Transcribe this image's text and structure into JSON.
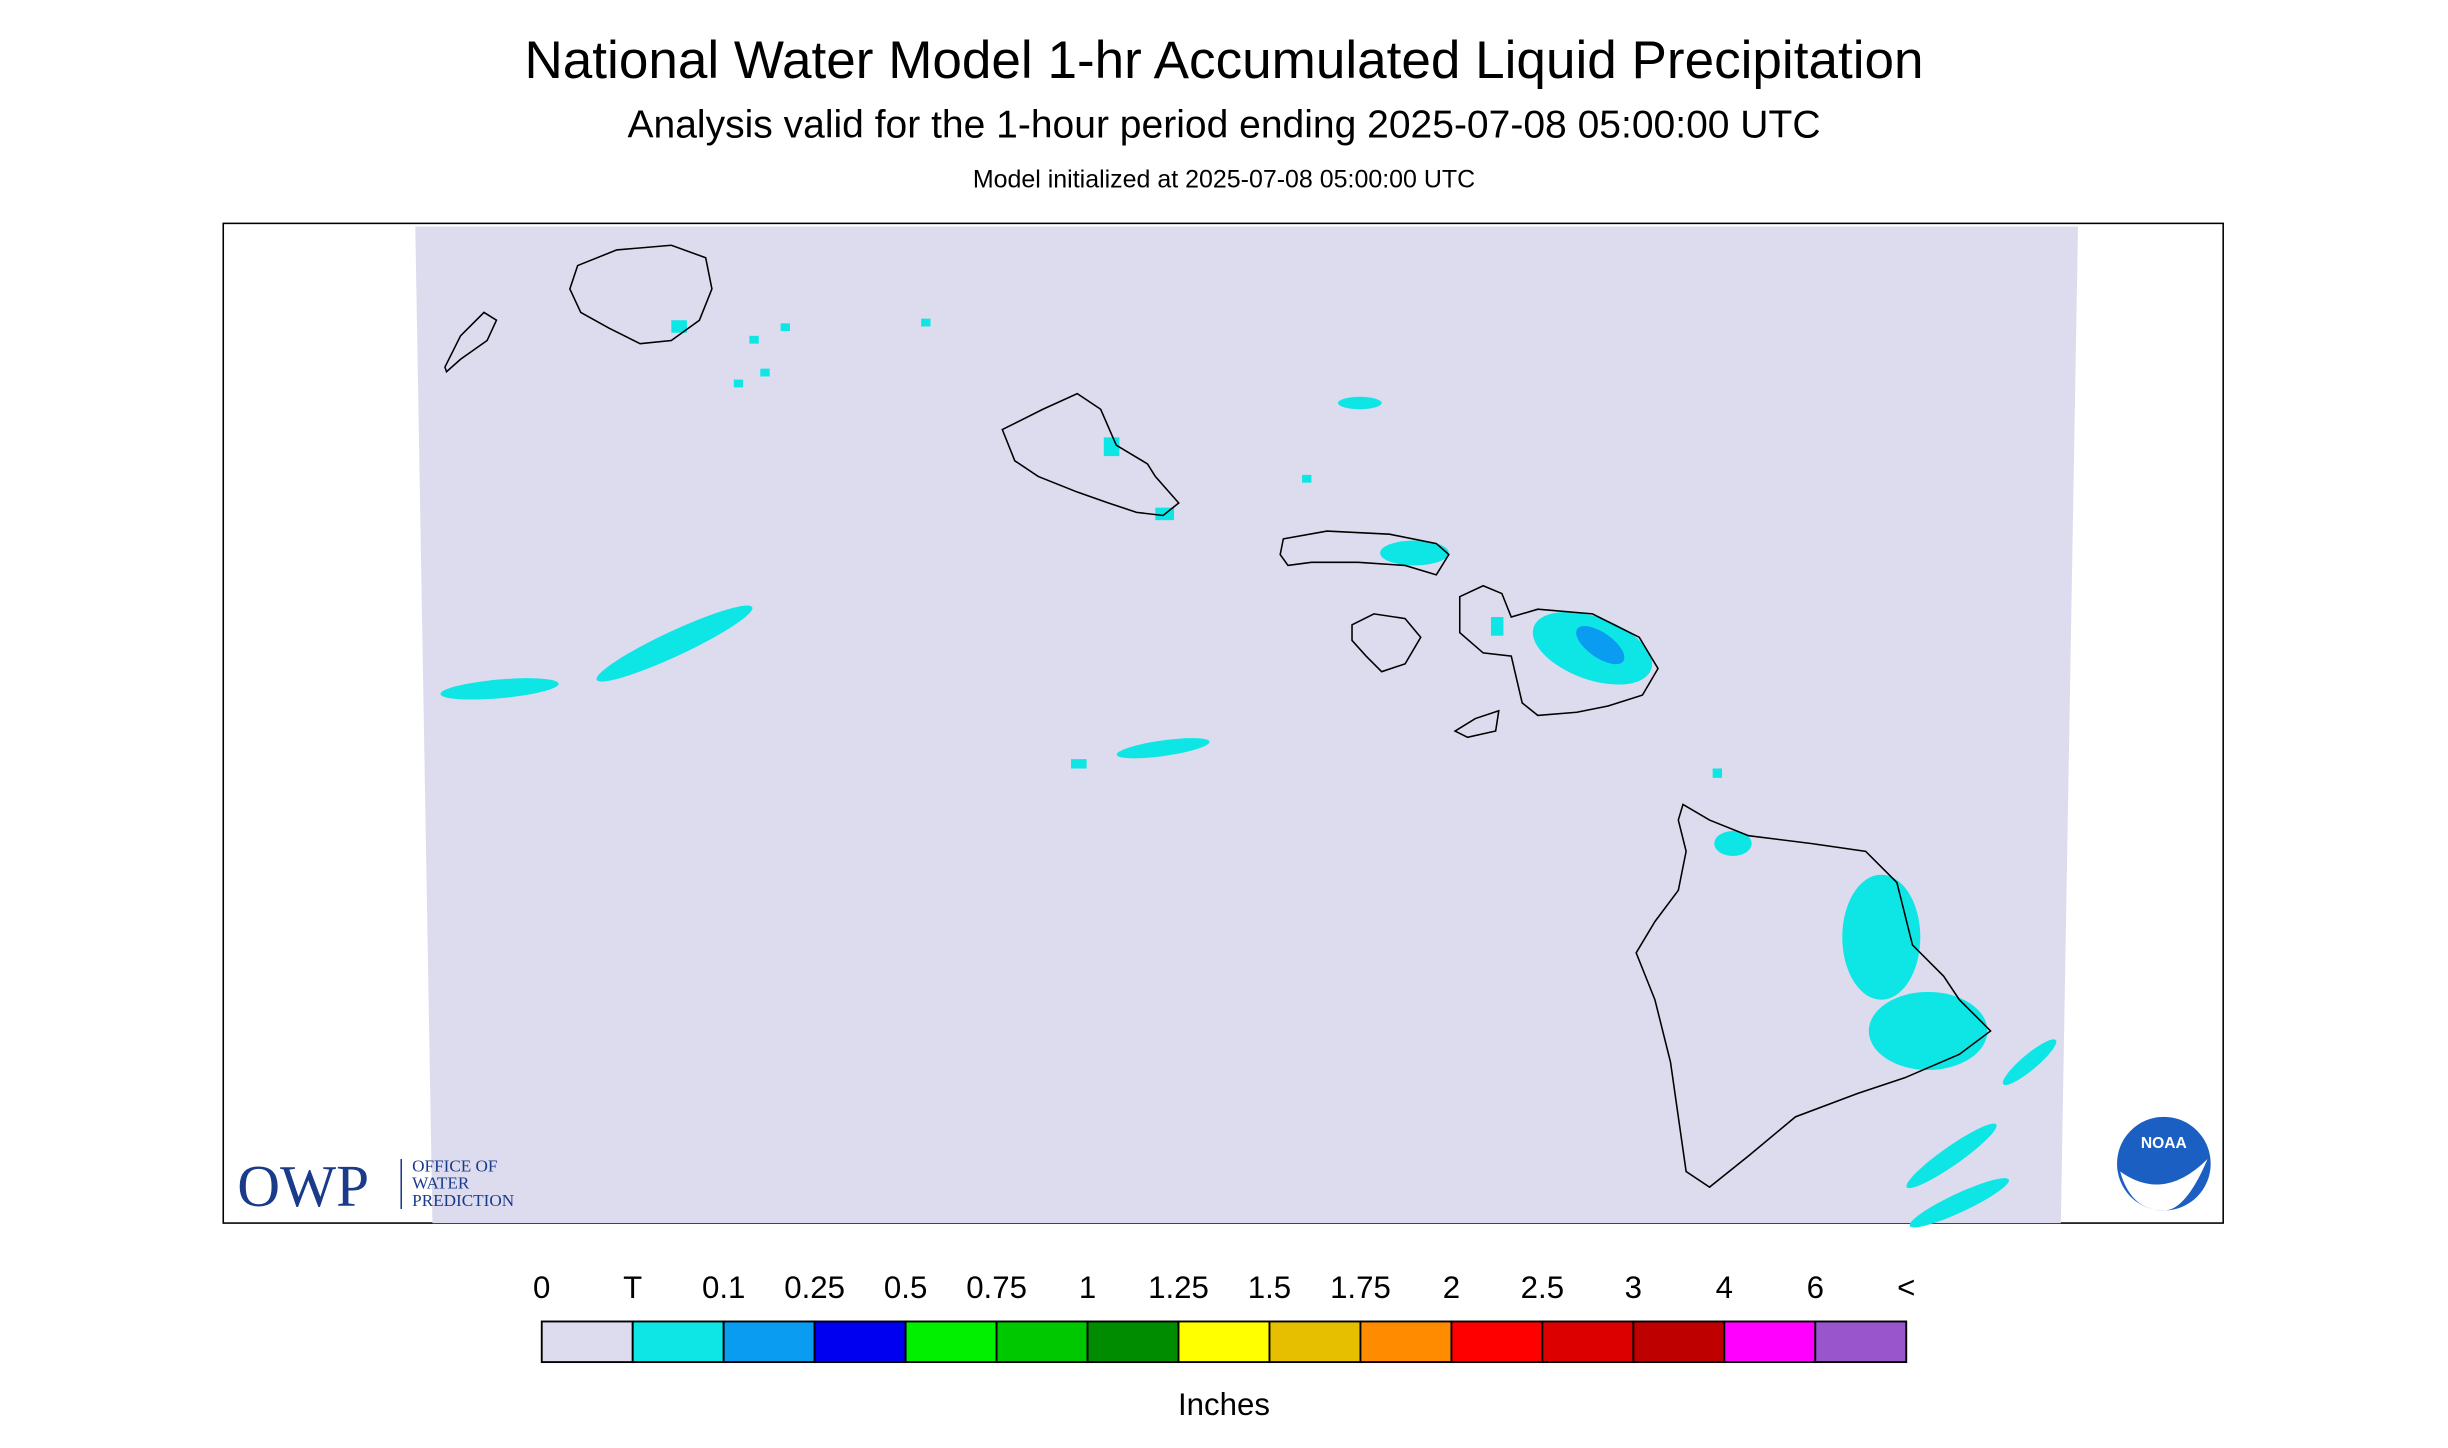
{
  "header": {
    "title": "National Water Model 1-hr Accumulated Liquid Precipitation",
    "subtitle": "Analysis valid for the 1-hour period ending 2025-07-08 05:00:00 UTC",
    "init": "Model initialized at 2025-07-08 05:00:00 UTC"
  },
  "logos": {
    "owp": "OWP",
    "owp_lines": [
      "OFFICE OF",
      "WATER",
      "PREDICTION"
    ],
    "noaa": "NOAA"
  },
  "legend": {
    "labels": [
      "0",
      "T",
      "0.1",
      "0.25",
      "0.5",
      "0.75",
      "1",
      "1.25",
      "1.5",
      "1.75",
      "2",
      "2.5",
      "3",
      "4",
      "6",
      "<"
    ],
    "colors": [
      "#dcdcee",
      "#0ee6e6",
      "#0a9cf0",
      "#0000f0",
      "#00f000",
      "#00c800",
      "#008c00",
      "#ffff00",
      "#e6c000",
      "#ff8c00",
      "#ff0000",
      "#dc0000",
      "#be0000",
      "#ff00ff",
      "#9955cc"
    ],
    "unit": "Inches"
  }
}
